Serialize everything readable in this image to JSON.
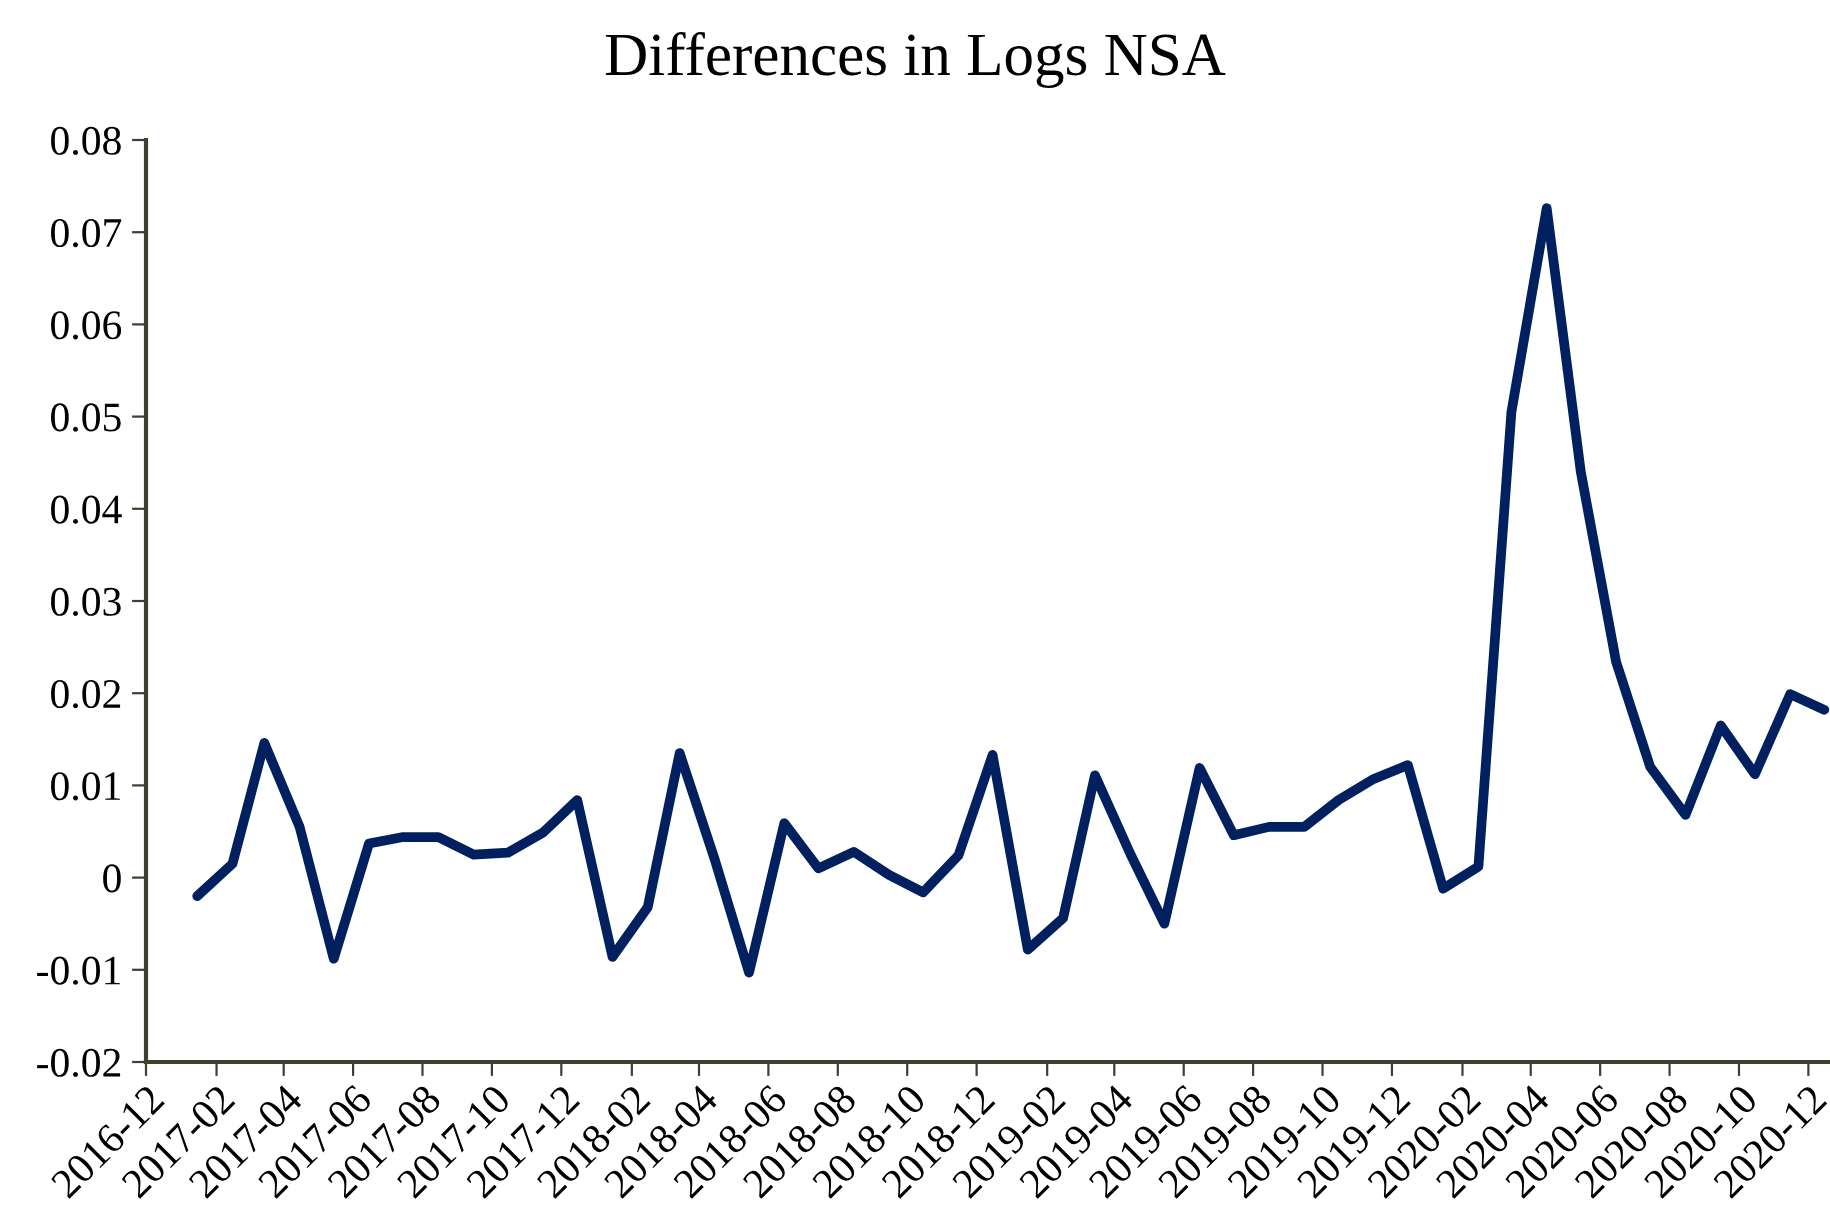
{
  "chart_data": {
    "type": "line",
    "title": "Differences in Logs NSA",
    "x": [
      "2017-01-15",
      "2017-02-15",
      "2017-03-15",
      "2017-04-15",
      "2017-05-15",
      "2017-06-15",
      "2017-07-15",
      "2017-08-15",
      "2017-09-15",
      "2017-10-15",
      "2017-11-15",
      "2017-12-15",
      "2018-01-15",
      "2018-02-15",
      "2018-03-15",
      "2018-04-15",
      "2018-05-15",
      "2018-06-15",
      "2018-07-15",
      "2018-08-15",
      "2018-09-15",
      "2018-10-15",
      "2018-11-15",
      "2018-12-15",
      "2019-01-15",
      "2019-02-15",
      "2019-03-15",
      "2019-04-15",
      "2019-05-15",
      "2019-06-15",
      "2019-07-15",
      "2019-08-15",
      "2019-09-15",
      "2019-10-15",
      "2019-11-15",
      "2019-12-15",
      "2020-01-15",
      "2020-02-15",
      "2020-03-15",
      "2020-04-15",
      "2020-05-15",
      "2020-06-15",
      "2020-07-15",
      "2020-08-15",
      "2020-09-15",
      "2020-10-15",
      "2020-11-15",
      "2020-12-15"
    ],
    "series": [
      {
        "color": "#002060",
        "values": [
          -0.002,
          0.0015,
          0.0146,
          0.0055,
          -0.0088,
          0.0037,
          0.0044,
          0.0044,
          0.0025,
          0.0027,
          0.0049,
          0.0084,
          -0.0086,
          -0.0032,
          0.0135,
          0.0019,
          -0.0103,
          0.0059,
          0.001,
          0.0028,
          0.0003,
          -0.0016,
          0.0024,
          0.0133,
          -0.0078,
          -0.0044,
          0.0111,
          0.0026,
          -0.005,
          0.0119,
          0.0046,
          0.0055,
          0.0055,
          0.0084,
          0.0107,
          0.0122,
          -0.0012,
          0.0012,
          0.0505,
          0.0726,
          0.044,
          0.0234,
          0.012,
          0.0068,
          0.0165,
          0.0112,
          0.0199,
          0.0182
        ]
      }
    ],
    "xlim": [
      "2016-12-01",
      "2020-12-20"
    ],
    "xticks": [
      {
        "value": "2016-12-01",
        "label": "2016-12"
      },
      {
        "value": "2017-02-01",
        "label": "2017-02"
      },
      {
        "value": "2017-04-01",
        "label": "2017-04"
      },
      {
        "value": "2017-06-01",
        "label": "2017-06"
      },
      {
        "value": "2017-08-01",
        "label": "2017-08"
      },
      {
        "value": "2017-10-01",
        "label": "2017-10"
      },
      {
        "value": "2017-12-01",
        "label": "2017-12"
      },
      {
        "value": "2018-02-01",
        "label": "2018-02"
      },
      {
        "value": "2018-04-01",
        "label": "2018-04"
      },
      {
        "value": "2018-06-01",
        "label": "2018-06"
      },
      {
        "value": "2018-08-01",
        "label": "2018-08"
      },
      {
        "value": "2018-10-01",
        "label": "2018-10"
      },
      {
        "value": "2018-12-01",
        "label": "2018-12"
      },
      {
        "value": "2019-02-01",
        "label": "2019-02"
      },
      {
        "value": "2019-04-01",
        "label": "2019-04"
      },
      {
        "value": "2019-06-01",
        "label": "2019-06"
      },
      {
        "value": "2019-08-01",
        "label": "2019-08"
      },
      {
        "value": "2019-10-01",
        "label": "2019-10"
      },
      {
        "value": "2019-12-01",
        "label": "2019-12"
      },
      {
        "value": "2020-02-01",
        "label": "2020-02"
      },
      {
        "value": "2020-04-01",
        "label": "2020-04"
      },
      {
        "value": "2020-06-01",
        "label": "2020-06"
      },
      {
        "value": "2020-08-01",
        "label": "2020-08"
      },
      {
        "value": "2020-10-01",
        "label": "2020-10"
      },
      {
        "value": "2020-12-01",
        "label": "2020-12"
      }
    ],
    "ylim": [
      -0.02,
      0.08
    ],
    "yticks": [
      {
        "value": -0.02,
        "label": "-0.02"
      },
      {
        "value": -0.01,
        "label": "-0.01"
      },
      {
        "value": 0,
        "label": "0"
      },
      {
        "value": 0.01,
        "label": "0.01"
      },
      {
        "value": 0.02,
        "label": "0.02"
      },
      {
        "value": 0.03,
        "label": "0.03"
      },
      {
        "value": 0.04,
        "label": "0.04"
      },
      {
        "value": 0.05,
        "label": "0.05"
      },
      {
        "value": 0.06,
        "label": "0.06"
      },
      {
        "value": 0.07,
        "label": "0.07"
      },
      {
        "value": 0.08,
        "label": "0.08"
      }
    ],
    "line_style": "solid"
  }
}
